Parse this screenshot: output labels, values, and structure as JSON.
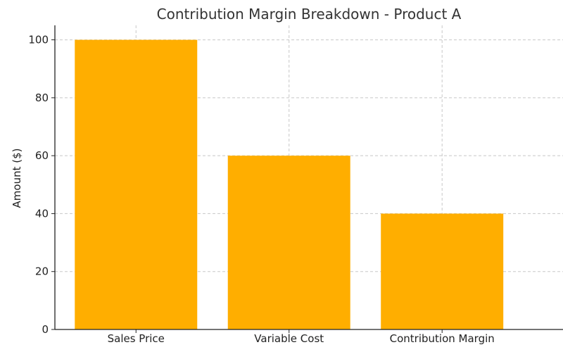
{
  "chart_data": {
    "type": "bar",
    "title": "Contribution Margin Breakdown - Product A",
    "xlabel": "",
    "ylabel": "Amount ($)",
    "categories": [
      "Sales Price",
      "Variable Cost",
      "Contribution Margin"
    ],
    "values": [
      100,
      60,
      40
    ],
    "ylim": [
      0,
      105
    ],
    "yticks": [
      0,
      20,
      40,
      60,
      80,
      100
    ],
    "grid": true,
    "bar_color": "#FFAE00"
  }
}
